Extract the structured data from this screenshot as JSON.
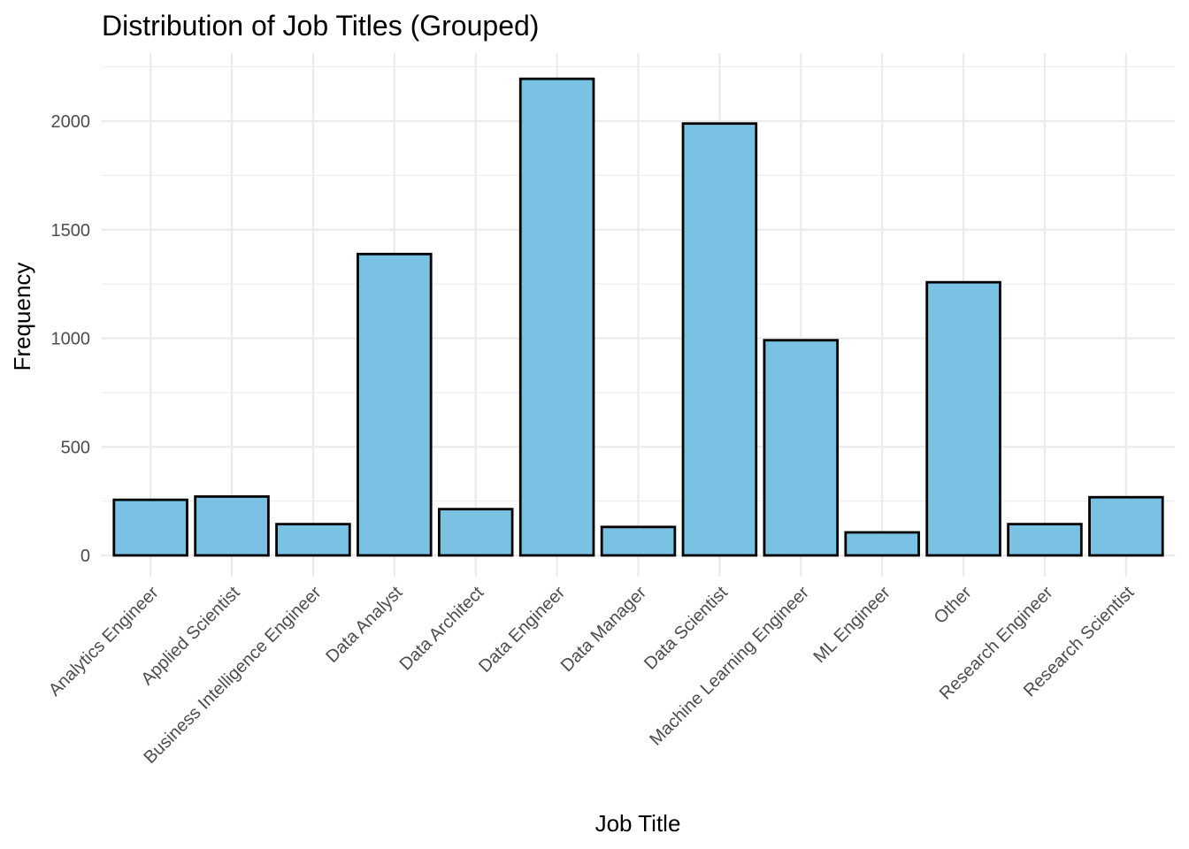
{
  "chart_data": {
    "type": "bar",
    "title": "Distribution of Job Titles (Grouped)",
    "xlabel": "Job Title",
    "ylabel": "Frequency",
    "categories": [
      "Analytics Engineer",
      "Applied Scientist",
      "Business Intelligence Engineer",
      "Data Analyst",
      "Data Architect",
      "Data Engineer",
      "Data Manager",
      "Data Scientist",
      "Machine Learning Engineer",
      "ML Engineer",
      "Other",
      "Research Engineer",
      "Research Scientist"
    ],
    "values": [
      256,
      271,
      144,
      1388,
      213,
      2195,
      131,
      1989,
      991,
      106,
      1258,
      144,
      268
    ],
    "yticks": [
      0,
      500,
      1000,
      1500,
      2000
    ],
    "ylim": [
      0,
      2300
    ],
    "grid": true,
    "legend": "none",
    "bar_fill": "#7AC2E4",
    "bar_outline": "#000000"
  }
}
